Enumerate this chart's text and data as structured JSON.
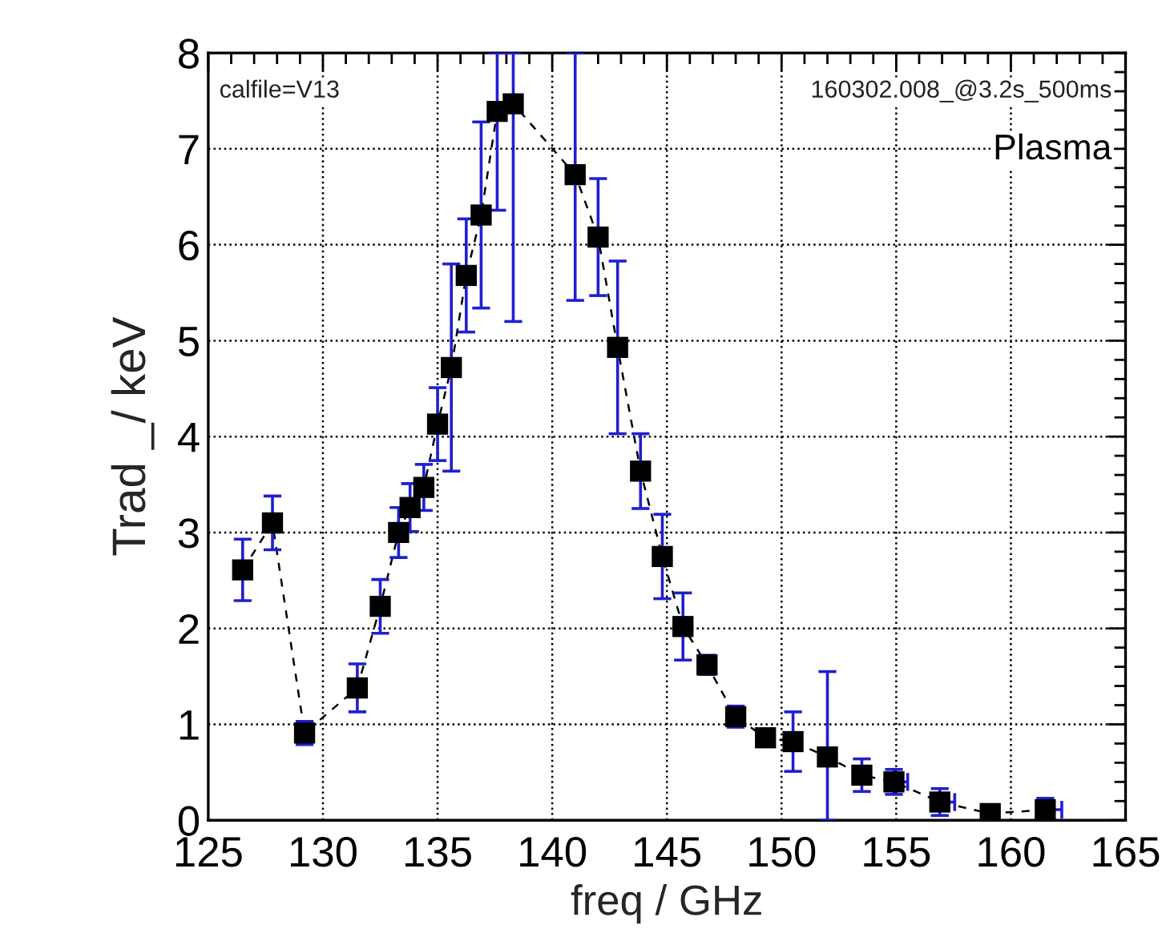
{
  "chart_data": {
    "type": "scatter",
    "xlabel": "freq / GHz",
    "ylabel": "Trad _/ keV",
    "xlim": [
      125,
      165
    ],
    "ylim": [
      0,
      8
    ],
    "xticks": [
      125,
      130,
      135,
      140,
      145,
      150,
      155,
      160,
      165
    ],
    "yticks": [
      0,
      1,
      2,
      3,
      4,
      5,
      6,
      7,
      8
    ],
    "grid": true,
    "annotations": [
      "calfile=V13",
      "160302.008_@3.2s_500ms",
      "Plasma"
    ],
    "series": [
      {
        "type": "line",
        "line_style": "dashed",
        "color": "#000000",
        "x": [
          126.5,
          127.8,
          129.2,
          131.5,
          132.5,
          133.3,
          133.8,
          134.4,
          135.0,
          135.6,
          136.25,
          136.9,
          137.6,
          138.3,
          141.0,
          142.0,
          142.85,
          143.85,
          144.8,
          145.7,
          146.75,
          148.0,
          149.3,
          150.5,
          152.0,
          153.5,
          154.9,
          156.9,
          159.1,
          161.5
        ],
        "values": [
          2.61,
          3.1,
          0.91,
          1.38,
          2.23,
          3.0,
          3.26,
          3.47,
          4.13,
          4.72,
          5.68,
          6.31,
          7.39,
          7.47,
          6.73,
          6.08,
          4.93,
          3.64,
          2.75,
          2.02,
          1.62,
          1.08,
          0.86,
          0.82,
          0.66,
          0.47,
          0.4,
          0.19,
          0.07,
          0.11
        ]
      },
      {
        "marker": "square",
        "color": "#000000",
        "x": [
          126.5,
          127.8,
          129.2,
          131.5,
          132.5,
          133.3,
          133.8,
          134.4,
          135.0,
          135.6,
          136.25,
          136.9,
          137.6,
          138.3,
          141.0,
          142.0,
          142.85,
          143.85,
          144.8,
          145.7,
          146.75,
          148.0,
          149.3,
          150.5,
          152.0,
          153.5,
          154.9,
          156.9,
          159.1,
          161.5
        ],
        "values": [
          2.61,
          3.1,
          0.91,
          1.38,
          2.23,
          3.0,
          3.26,
          3.47,
          4.13,
          4.72,
          5.68,
          6.31,
          7.39,
          7.47,
          6.73,
          6.08,
          4.93,
          3.64,
          2.75,
          2.02,
          1.62,
          1.08,
          0.86,
          0.82,
          0.66,
          0.47,
          0.4,
          0.19,
          0.07,
          0.11
        ],
        "errors": [
          0.32,
          0.28,
          0.12,
          0.25,
          0.28,
          0.26,
          0.25,
          0.24,
          0.38,
          1.08,
          0.59,
          0.97,
          [
            6.36,
            8
          ],
          [
            5.2,
            8
          ],
          [
            5.42,
            8
          ],
          0.61,
          0.9,
          0.39,
          0.44,
          0.35,
          0.1,
          0.11,
          null,
          0.31,
          [
            0,
            1.55
          ],
          0.17,
          0.13,
          0.14,
          null,
          [
            0,
            0.23
          ]
        ],
        "xerrors": [
          null,
          null,
          null,
          null,
          null,
          null,
          null,
          null,
          null,
          null,
          null,
          null,
          null,
          null,
          null,
          null,
          null,
          null,
          null,
          null,
          null,
          null,
          null,
          null,
          null,
          null,
          [
            154.9,
            155.5
          ],
          [
            156.9,
            157.55
          ],
          null,
          [
            161.5,
            162.22
          ]
        ]
      }
    ]
  }
}
